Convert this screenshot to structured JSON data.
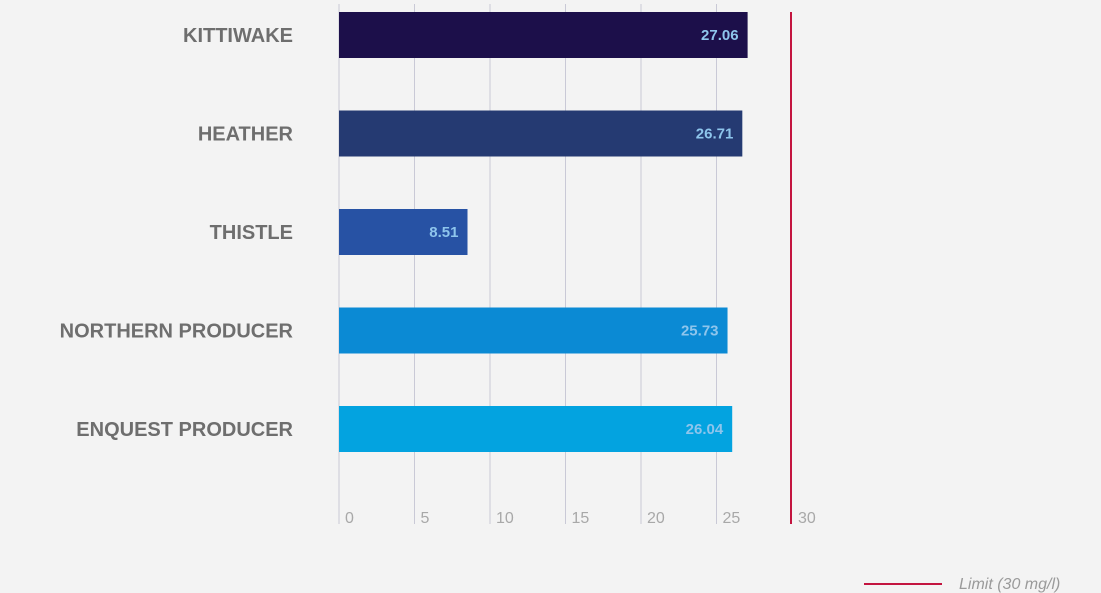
{
  "chart_data": {
    "type": "bar",
    "orientation": "horizontal",
    "categories": [
      "KITTIWAKE",
      "HEATHER",
      "THISTLE",
      "NORTHERN PRODUCER",
      "ENQUEST PRODUCER"
    ],
    "values": [
      27.06,
      26.71,
      8.51,
      25.73,
      26.04
    ],
    "value_labels": [
      "27.06",
      "26.71",
      "8.51",
      "25.73",
      "26.04"
    ],
    "bar_colors": [
      "#1c0f4a",
      "#253a72",
      "#2752a4",
      "#0b8ad4",
      "#03a3e0"
    ],
    "xticks": [
      0,
      5,
      10,
      15,
      20,
      25,
      30
    ],
    "xtick_labels": [
      "0",
      "5",
      "10",
      "15",
      "20",
      "25",
      "30"
    ],
    "xlim": [
      0,
      30
    ],
    "grid": true,
    "reference_line": {
      "value": 30,
      "color": "#c3143f"
    },
    "legend": {
      "position": "bottom-right",
      "label": "Limit (30 mg/l)",
      "color": "#c3143f"
    }
  }
}
